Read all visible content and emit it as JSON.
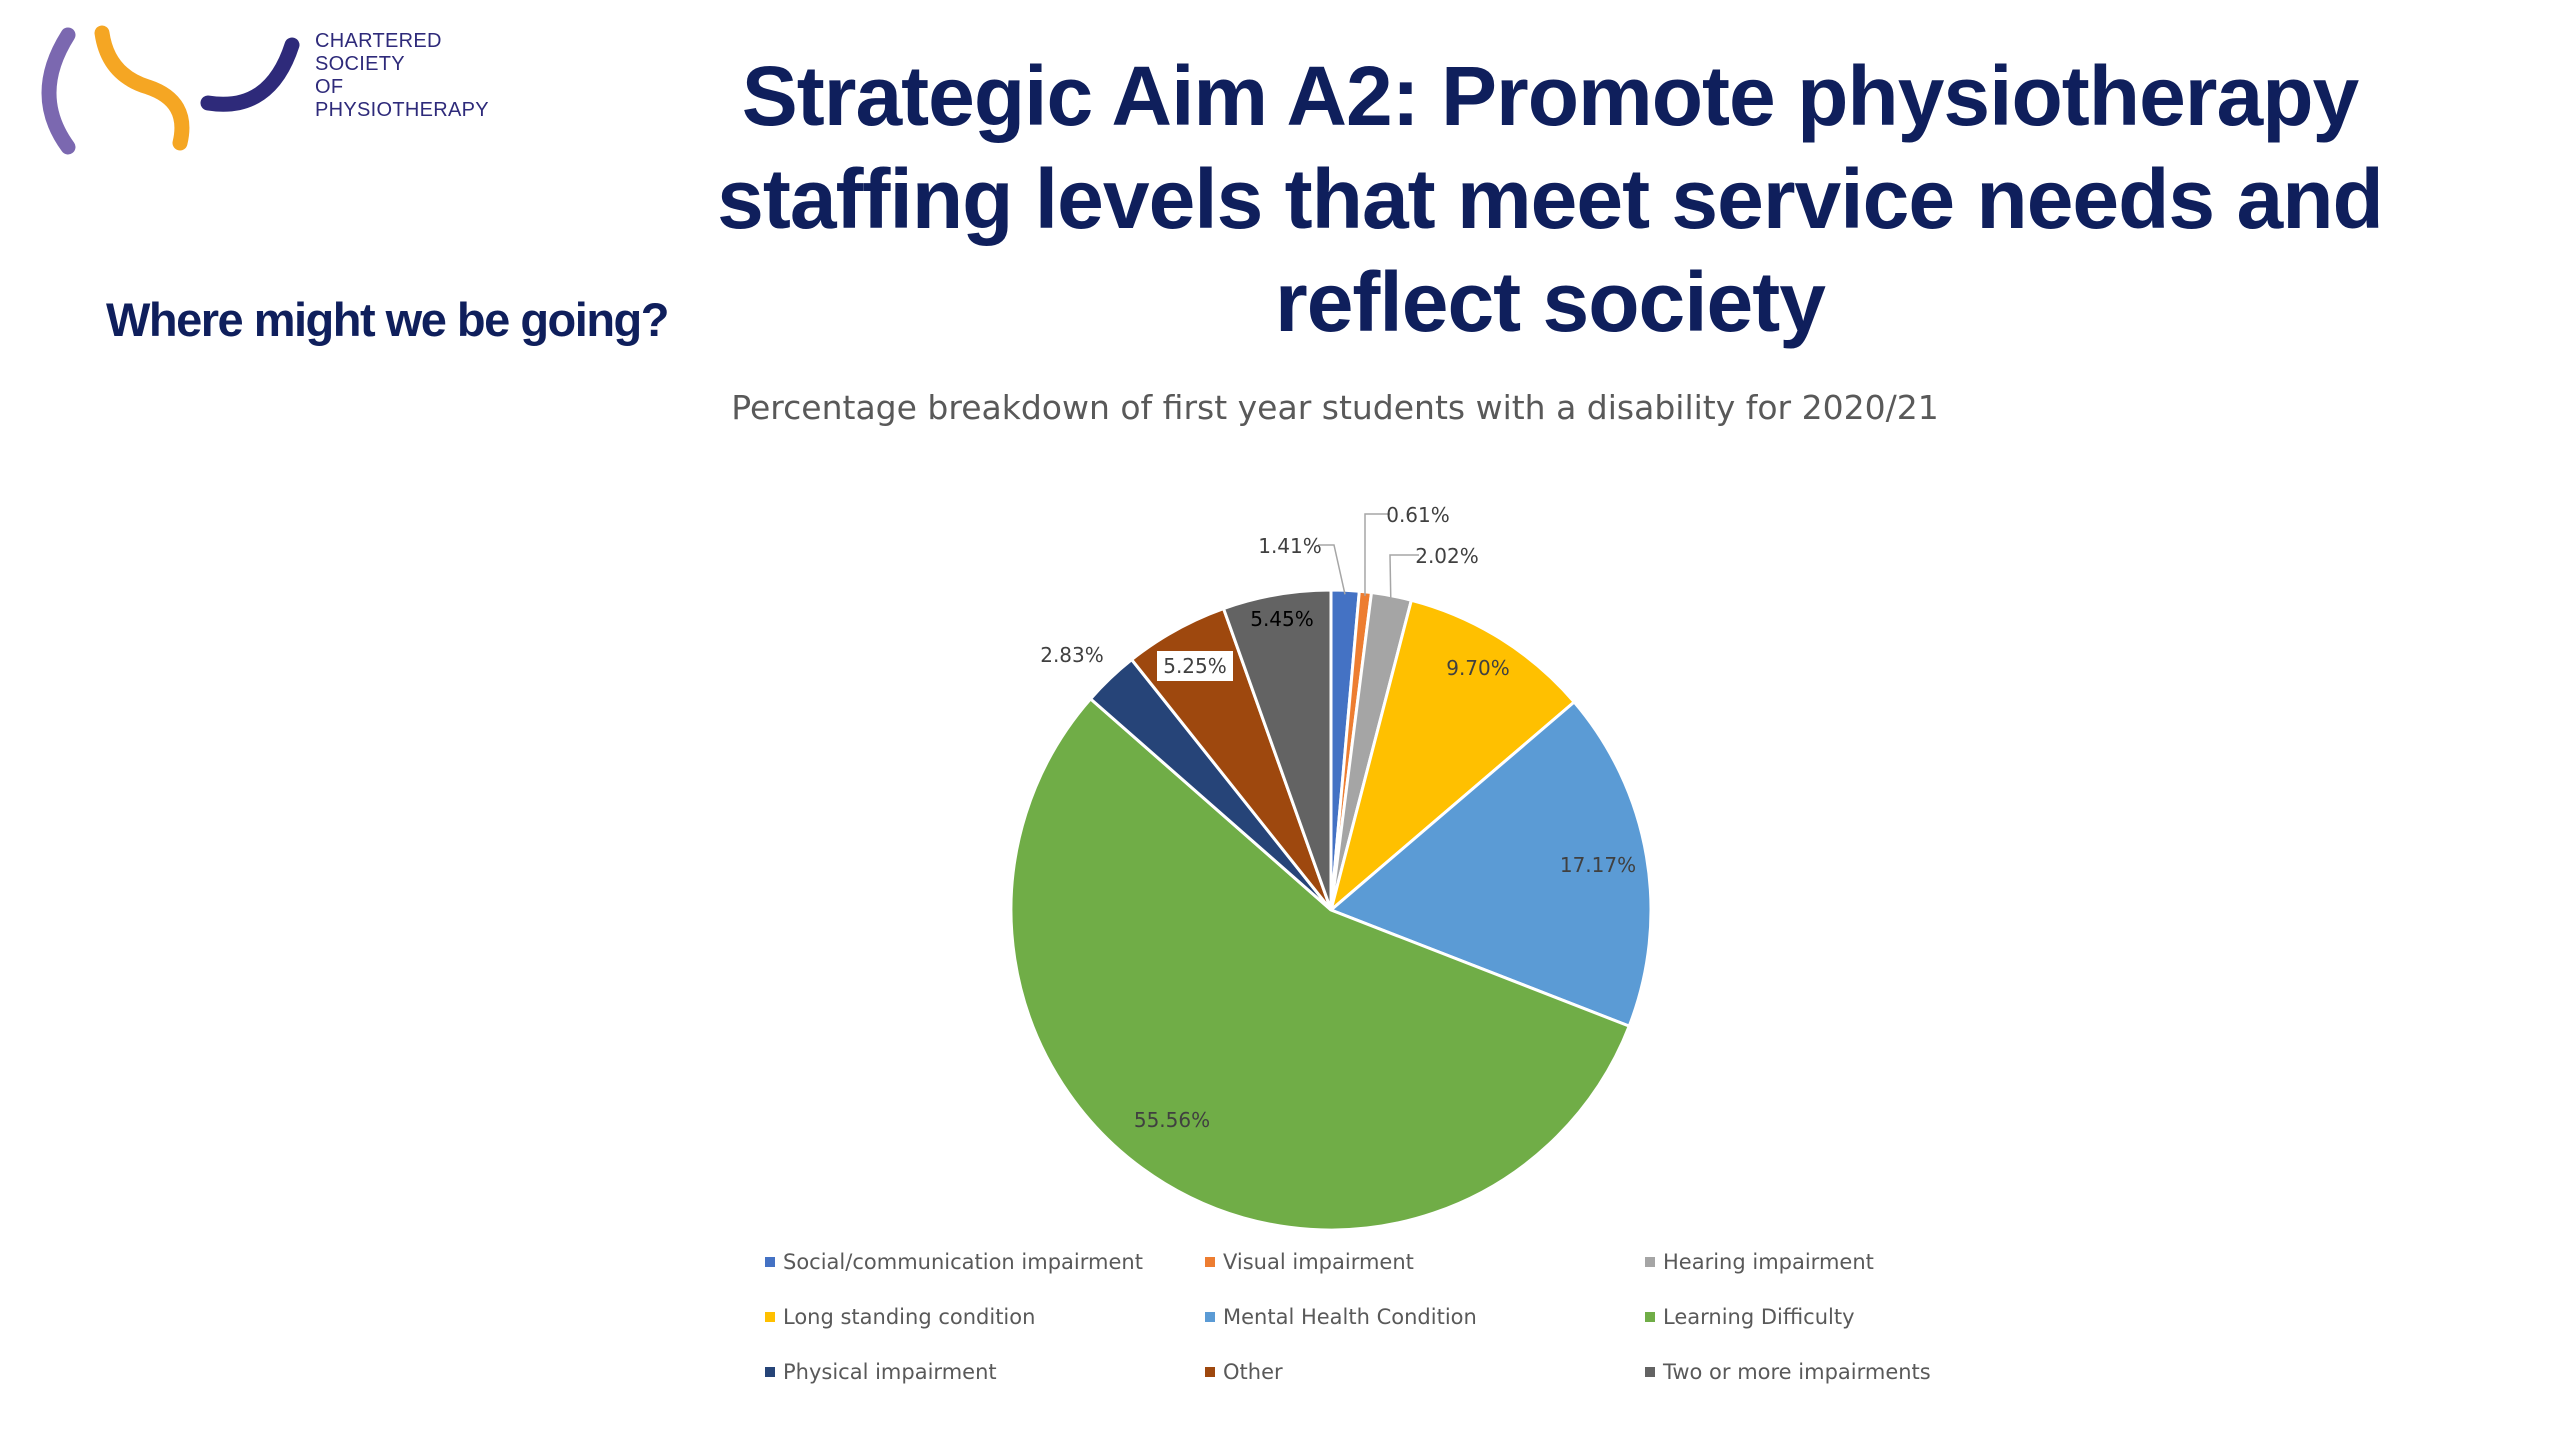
{
  "logo": {
    "lines": [
      "CHARTERED",
      "SOCIETY",
      "OF",
      "PHYSIOTHERAPY"
    ],
    "colors": {
      "purple": "#7b68b0",
      "orange": "#f5a623",
      "navy": "#2e2a7a"
    }
  },
  "slide": {
    "title_lines": [
      "Strategic Aim A2: Promote physiotherapy",
      "staffing levels that meet service needs and",
      "reflect society"
    ],
    "subhead": "Where might we be going?"
  },
  "chart_data": {
    "type": "pie",
    "title": "Percentage breakdown of first year students with a disability for 2020/21",
    "start_angle_deg": 0,
    "direction": "clockwise",
    "legend_position": "bottom",
    "slices": [
      {
        "name": "Social/communication impairment",
        "value": 1.41,
        "label": "1.41%",
        "color": "#4472c4"
      },
      {
        "name": "Visual impairment",
        "value": 0.61,
        "label": "0.61%",
        "color": "#ed7d31"
      },
      {
        "name": "Hearing impairment",
        "value": 2.02,
        "label": "2.02%",
        "color": "#a5a5a5"
      },
      {
        "name": "Long standing condition",
        "value": 9.7,
        "label": "9.70%",
        "color": "#ffc000"
      },
      {
        "name": "Mental Health Condition",
        "value": 17.17,
        "label": "17.17%",
        "color": "#5b9bd5"
      },
      {
        "name": "Learning Difficulty",
        "value": 55.56,
        "label": "55.56%",
        "color": "#70ad47"
      },
      {
        "name": "Physical impairment",
        "value": 2.83,
        "label": "2.83%",
        "color": "#264478"
      },
      {
        "name": "Other",
        "value": 5.25,
        "label": "5.25%",
        "color": "#9e480e"
      },
      {
        "name": "Two or more impairments",
        "value": 5.45,
        "label": "5.45%",
        "color": "#636363"
      }
    ]
  }
}
